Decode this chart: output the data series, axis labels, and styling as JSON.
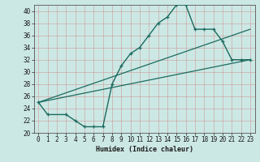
{
  "xlabel": "Humidex (Indice chaleur)",
  "ylabel": "",
  "bg_color": "#cce8e4",
  "grid_color": "#b0ccc8",
  "line_color": "#1a6b60",
  "xlim": [
    -0.5,
    23.5
  ],
  "ylim": [
    20,
    41
  ],
  "yticks": [
    20,
    22,
    24,
    26,
    28,
    30,
    32,
    34,
    36,
    38,
    40
  ],
  "xticks": [
    0,
    1,
    2,
    3,
    4,
    5,
    6,
    7,
    8,
    9,
    10,
    11,
    12,
    13,
    14,
    15,
    16,
    17,
    18,
    19,
    20,
    21,
    22,
    23
  ],
  "curve1_x": [
    0,
    1,
    3,
    4,
    5,
    6,
    7,
    8,
    9,
    10,
    11,
    12,
    13,
    14,
    15,
    16,
    17,
    18,
    19,
    20,
    21,
    22,
    23
  ],
  "curve1_y": [
    25,
    23,
    23,
    22,
    21,
    21,
    21,
    28,
    31,
    33,
    34,
    36,
    38,
    39,
    41,
    41,
    37,
    37,
    37,
    35,
    32,
    32,
    32
  ],
  "line2_x": [
    0,
    23
  ],
  "line2_y": [
    25,
    37
  ],
  "line3_x": [
    0,
    23
  ],
  "line3_y": [
    25,
    32
  ]
}
